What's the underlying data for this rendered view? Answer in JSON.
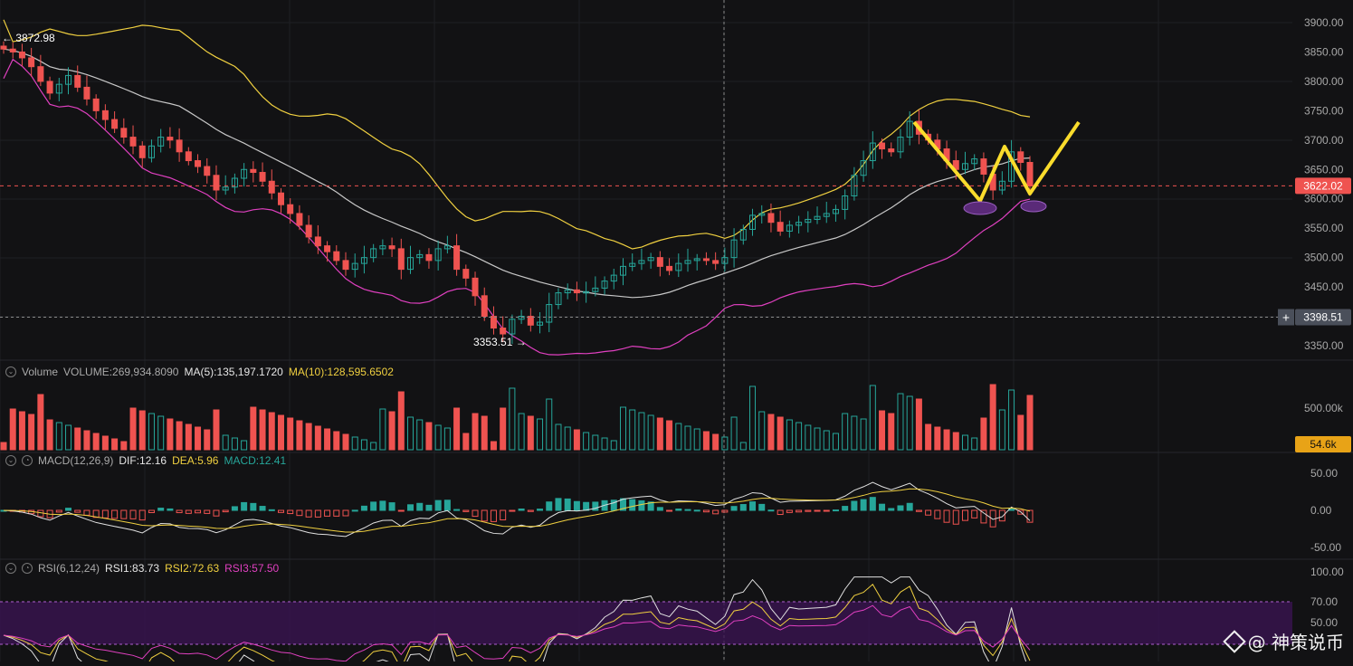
{
  "colors": {
    "bg": "#121214",
    "grid": "#1f2024",
    "up": "#26a69a",
    "down": "#ef5350",
    "bb_upper": "#f0d040",
    "bb_mid": "#c8c8c8",
    "bb_lower": "#e040c0",
    "pattern": "#fadc2c",
    "ellipse": "#5a2a78",
    "rsi_band": "#3a1450",
    "dif": "#e0e0e0",
    "dea": "#f0d040",
    "rsi1": "#e0e0e0",
    "rsi2": "#f0d040",
    "rsi3": "#e040c0"
  },
  "price_axis": [
    "3900.00",
    "3850.00",
    "3800.00",
    "3750.00",
    "3700.00",
    "3650.00",
    "3600.00",
    "3550.00",
    "3500.00",
    "3450.00",
    "3400.00",
    "3350.00"
  ],
  "price_tags": {
    "current": "3622.02",
    "crosshair": "3398.51",
    "high": "← 3872.98",
    "low": "3353.51 →"
  },
  "volume_header": {
    "label": "Volume",
    "value": "VOLUME:269,934.8090",
    "ma5": "MA(5):135,197.1720",
    "ma10": "MA(10):128,595.6502"
  },
  "volume_axis": {
    "tick": "500.00k",
    "current": "54.6k"
  },
  "macd_header": {
    "label": "MACD(12,26,9)",
    "dif": "DIF:12.16",
    "dea": "DEA:5.96",
    "macd": "MACD:12.41"
  },
  "macd_axis": [
    "50.00",
    "0.00",
    "-50.00"
  ],
  "rsi_header": {
    "label": "RSI(6,12,24)",
    "rsi1": "RSI1:83.73",
    "rsi2": "RSI2:72.63",
    "rsi3": "RSI3:57.50"
  },
  "rsi_axis": [
    "100.00",
    "70.00",
    "50.00"
  ],
  "watermark": "@ 神策说币",
  "chart_data": {
    "type": "candlestick",
    "price_range": [
      3320,
      3930
    ],
    "closes": [
      3855,
      3850,
      3840,
      3825,
      3800,
      3780,
      3795,
      3810,
      3790,
      3770,
      3750,
      3735,
      3720,
      3705,
      3690,
      3670,
      3690,
      3705,
      3700,
      3680,
      3665,
      3655,
      3640,
      3615,
      3620,
      3635,
      3650,
      3645,
      3630,
      3610,
      3590,
      3575,
      3555,
      3535,
      3520,
      3510,
      3495,
      3480,
      3490,
      3500,
      3515,
      3520,
      3515,
      3480,
      3500,
      3505,
      3495,
      3515,
      3520,
      3480,
      3465,
      3435,
      3400,
      3380,
      3370,
      3395,
      3400,
      3385,
      3390,
      3420,
      3440,
      3445,
      3440,
      3442,
      3448,
      3460,
      3470,
      3485,
      3490,
      3495,
      3500,
      3485,
      3478,
      3490,
      3495,
      3498,
      3495,
      3490,
      3500,
      3530,
      3548,
      3572,
      3575,
      3560,
      3545,
      3555,
      3560,
      3565,
      3570,
      3575,
      3582,
      3605,
      3640,
      3665,
      3695,
      3685,
      3680,
      3705,
      3732,
      3710,
      3700,
      3685,
      3665,
      3650,
      3660,
      3668,
      3642,
      3615,
      3630,
      3680,
      3662,
      3622
    ]
  }
}
